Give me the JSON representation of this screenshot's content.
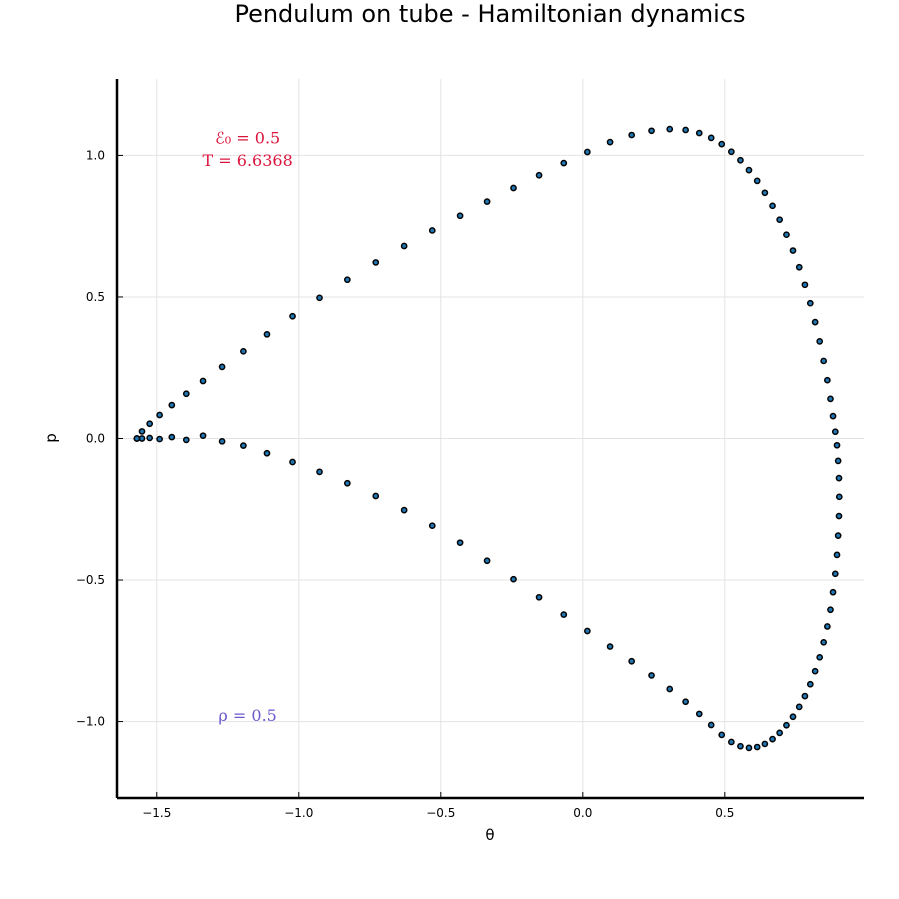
{
  "chart_data": {
    "type": "scatter",
    "title": "Pendulum on tube - Hamiltonian dynamics",
    "xlabel": "θ",
    "ylabel": "p",
    "xlim": [
      -1.64,
      0.99
    ],
    "ylim": [
      -1.27,
      1.27
    ],
    "x_ticks": [
      -1.5,
      -1.0,
      -0.5,
      0.0,
      0.5
    ],
    "x_tick_labels": [
      "−1.5",
      "−1.0",
      "−0.5",
      "0.0",
      "0.5"
    ],
    "y_ticks": [
      -1.0,
      -0.5,
      0.0,
      0.5,
      1.0
    ],
    "y_tick_labels": [
      "−1.0",
      "−0.5",
      "0.0",
      "0.5",
      "1.0"
    ],
    "grid": true,
    "legend": "none",
    "colors": {
      "marker": "#1f77b4",
      "energy_annotation": "#dc143c",
      "rho_annotation": "#6a5acd"
    },
    "annotations": [
      {
        "text": "ℰ₀ = 0.5",
        "x": -1.18,
        "y": 1.06,
        "color": "#dc143c"
      },
      {
        "text": "T = 6.6368",
        "x": -1.18,
        "y": 0.98,
        "color": "#dc143c"
      },
      {
        "text": "ρ = 0.5",
        "x": -1.18,
        "y": -0.98,
        "color": "#6a5acd"
      }
    ],
    "series": [
      {
        "x": [
          -1.57,
          -1.552,
          -1.525,
          -1.49,
          -1.447,
          -1.396,
          -1.337,
          -1.27,
          -1.195,
          -1.112,
          -1.022,
          -0.927,
          -0.829,
          -0.729,
          -0.629,
          -0.53,
          -0.432,
          -0.337,
          -0.244,
          -0.154,
          -0.067,
          0.016,
          0.096,
          0.172,
          0.242,
          0.306,
          0.362,
          0.41,
          0.452,
          0.489,
          0.523,
          0.555,
          0.585,
          0.614,
          0.641,
          0.668,
          0.693,
          0.717,
          0.74,
          0.762,
          0.782,
          0.801,
          0.818,
          0.834,
          0.848,
          0.861,
          0.872,
          0.881,
          0.889,
          0.895,
          0.899,
          0.902,
          0.903,
          0.902,
          0.899,
          0.895,
          0.889,
          0.881,
          0.872,
          0.861,
          0.848,
          0.834,
          0.818,
          0.801,
          0.782,
          0.762,
          0.74,
          0.717,
          0.693,
          0.668,
          0.641,
          0.614,
          0.585,
          0.555,
          0.523,
          0.489,
          0.452,
          0.41,
          0.362,
          0.306,
          0.242,
          0.172,
          0.096,
          0.016,
          -0.067,
          -0.154,
          -0.244,
          -0.337,
          -0.432,
          -0.53,
          -0.629,
          -0.729,
          -0.829,
          -0.927,
          -1.022,
          -1.112,
          -1.195,
          -1.27,
          -1.337,
          -1.396,
          -1.447,
          -1.49,
          -1.525,
          -1.552,
          -1.57
        ],
        "y": [
          0.0,
          0.025,
          0.052,
          0.083,
          0.118,
          0.158,
          0.203,
          0.253,
          0.308,
          0.368,
          0.432,
          0.497,
          0.561,
          0.622,
          0.68,
          0.735,
          0.787,
          0.837,
          0.885,
          0.93,
          0.973,
          1.012,
          1.047,
          1.072,
          1.087,
          1.093,
          1.09,
          1.079,
          1.062,
          1.04,
          1.013,
          0.983,
          0.948,
          0.91,
          0.868,
          0.822,
          0.773,
          0.72,
          0.664,
          0.605,
          0.543,
          0.478,
          0.411,
          0.343,
          0.274,
          0.206,
          0.14,
          0.079,
          0.024,
          -0.024,
          -0.079,
          -0.14,
          -0.206,
          -0.274,
          -0.343,
          -0.411,
          -0.478,
          -0.543,
          -0.605,
          -0.664,
          -0.72,
          -0.773,
          -0.822,
          -0.868,
          -0.91,
          -0.948,
          -0.983,
          -1.013,
          -1.04,
          -1.062,
          -1.079,
          -1.09,
          -1.093,
          -1.087,
          -1.072,
          -1.047,
          -1.012,
          -0.973,
          -0.93,
          -0.885,
          -0.837,
          -0.787,
          -0.735,
          -0.68,
          -0.622,
          -0.561,
          -0.497,
          -0.432,
          -0.368,
          -0.308,
          -0.253,
          -0.203,
          -0.158,
          -0.118,
          -0.083,
          -0.052,
          -0.025,
          -0.01,
          0.01,
          -0.005,
          0.005,
          -0.002,
          0.002,
          0.0,
          0.0
        ]
      }
    ]
  }
}
